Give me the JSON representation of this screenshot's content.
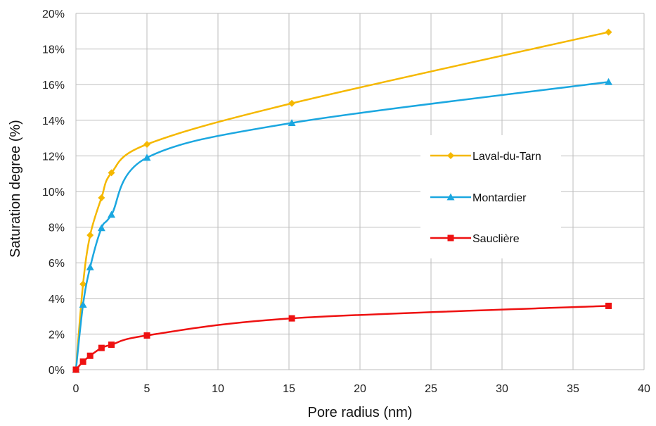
{
  "chart_data": {
    "type": "line",
    "title": "",
    "xlabel": "Pore radius (nm)",
    "ylabel": "Saturation degree (%)",
    "xlim": [
      0,
      40
    ],
    "ylim": [
      0,
      20
    ],
    "x_ticks": [
      0,
      5,
      10,
      15,
      20,
      25,
      30,
      35,
      40
    ],
    "y_ticks": [
      0,
      2,
      4,
      6,
      8,
      10,
      12,
      14,
      16,
      18,
      20
    ],
    "y_tick_suffix": "%",
    "grid": true,
    "legend_position": "center-right",
    "series": [
      {
        "name": "Laval-du-Tarn",
        "color": "#F5B800",
        "marker": "diamond",
        "x": [
          0,
          0.5,
          1,
          1.8,
          2.5,
          5,
          15.2,
          37.5
        ],
        "y": [
          0,
          4.8,
          7.55,
          9.65,
          11.05,
          12.65,
          14.95,
          18.95
        ]
      },
      {
        "name": "Montardier",
        "color": "#1BA7E0",
        "marker": "triangle",
        "x": [
          0,
          0.5,
          1,
          1.8,
          2.5,
          5,
          15.2,
          37.5
        ],
        "y": [
          0,
          3.65,
          5.75,
          7.95,
          8.7,
          11.9,
          13.85,
          16.15
        ]
      },
      {
        "name": "Sauclière",
        "color": "#EE1111",
        "marker": "square",
        "x": [
          0,
          0.5,
          1,
          1.8,
          2.5,
          5,
          15.2,
          37.5
        ],
        "y": [
          0,
          0.45,
          0.78,
          1.22,
          1.4,
          1.92,
          2.88,
          3.58
        ]
      }
    ]
  }
}
